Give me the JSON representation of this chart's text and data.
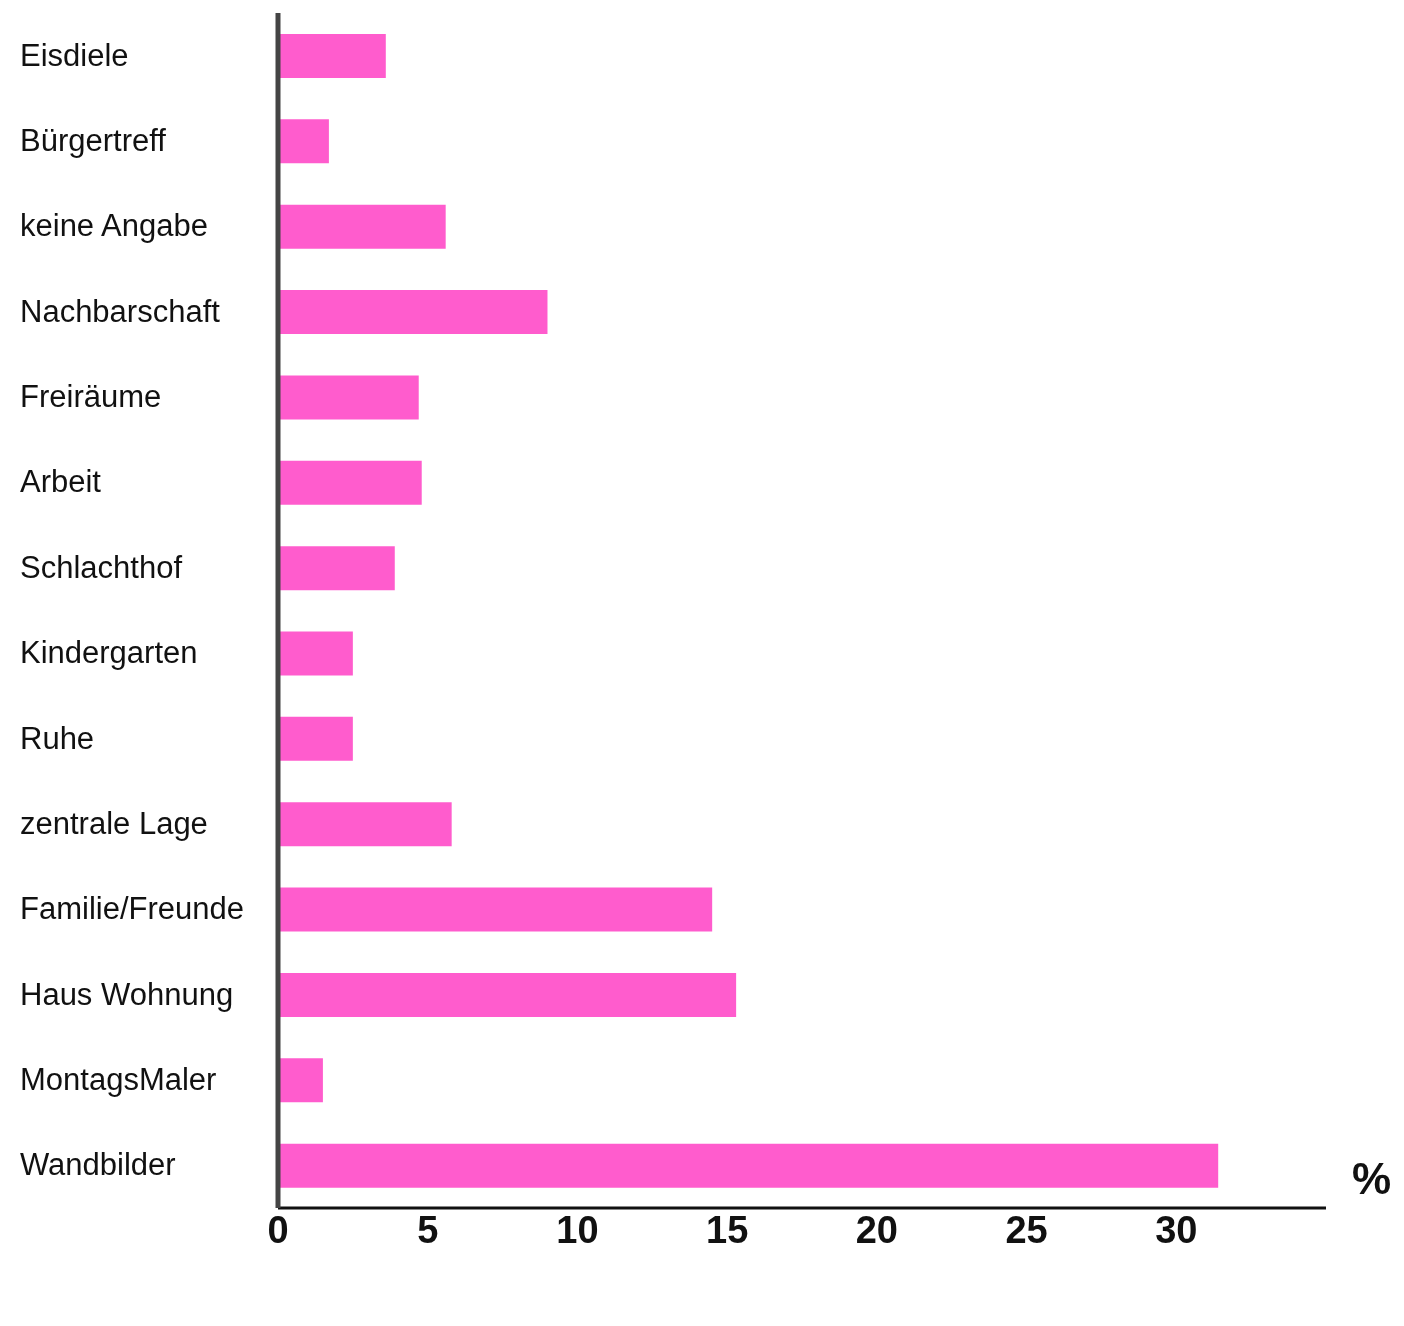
{
  "chart_data": {
    "type": "bar",
    "orientation": "horizontal",
    "xlabel": "%",
    "categories": [
      "Eisdiele",
      "Bürgertreff",
      "keine Angabe",
      "Nachbarschaft",
      "Freiräume",
      "Arbeit",
      "Schlachthof",
      "Kindergarten",
      "Ruhe",
      "zentrale Lage",
      "Familie/Freunde",
      "Haus Wohnung",
      "MontagsMaler",
      "Wandbilder"
    ],
    "values": [
      3.6,
      1.7,
      5.6,
      9.0,
      4.7,
      4.8,
      3.9,
      2.5,
      2.5,
      5.8,
      14.5,
      15.3,
      1.5,
      31.4
    ],
    "color": "#ff5ccd",
    "xlim": [
      0,
      35
    ],
    "xticks": [
      0,
      5,
      10,
      15,
      20,
      25,
      30
    ],
    "grid": false
  }
}
